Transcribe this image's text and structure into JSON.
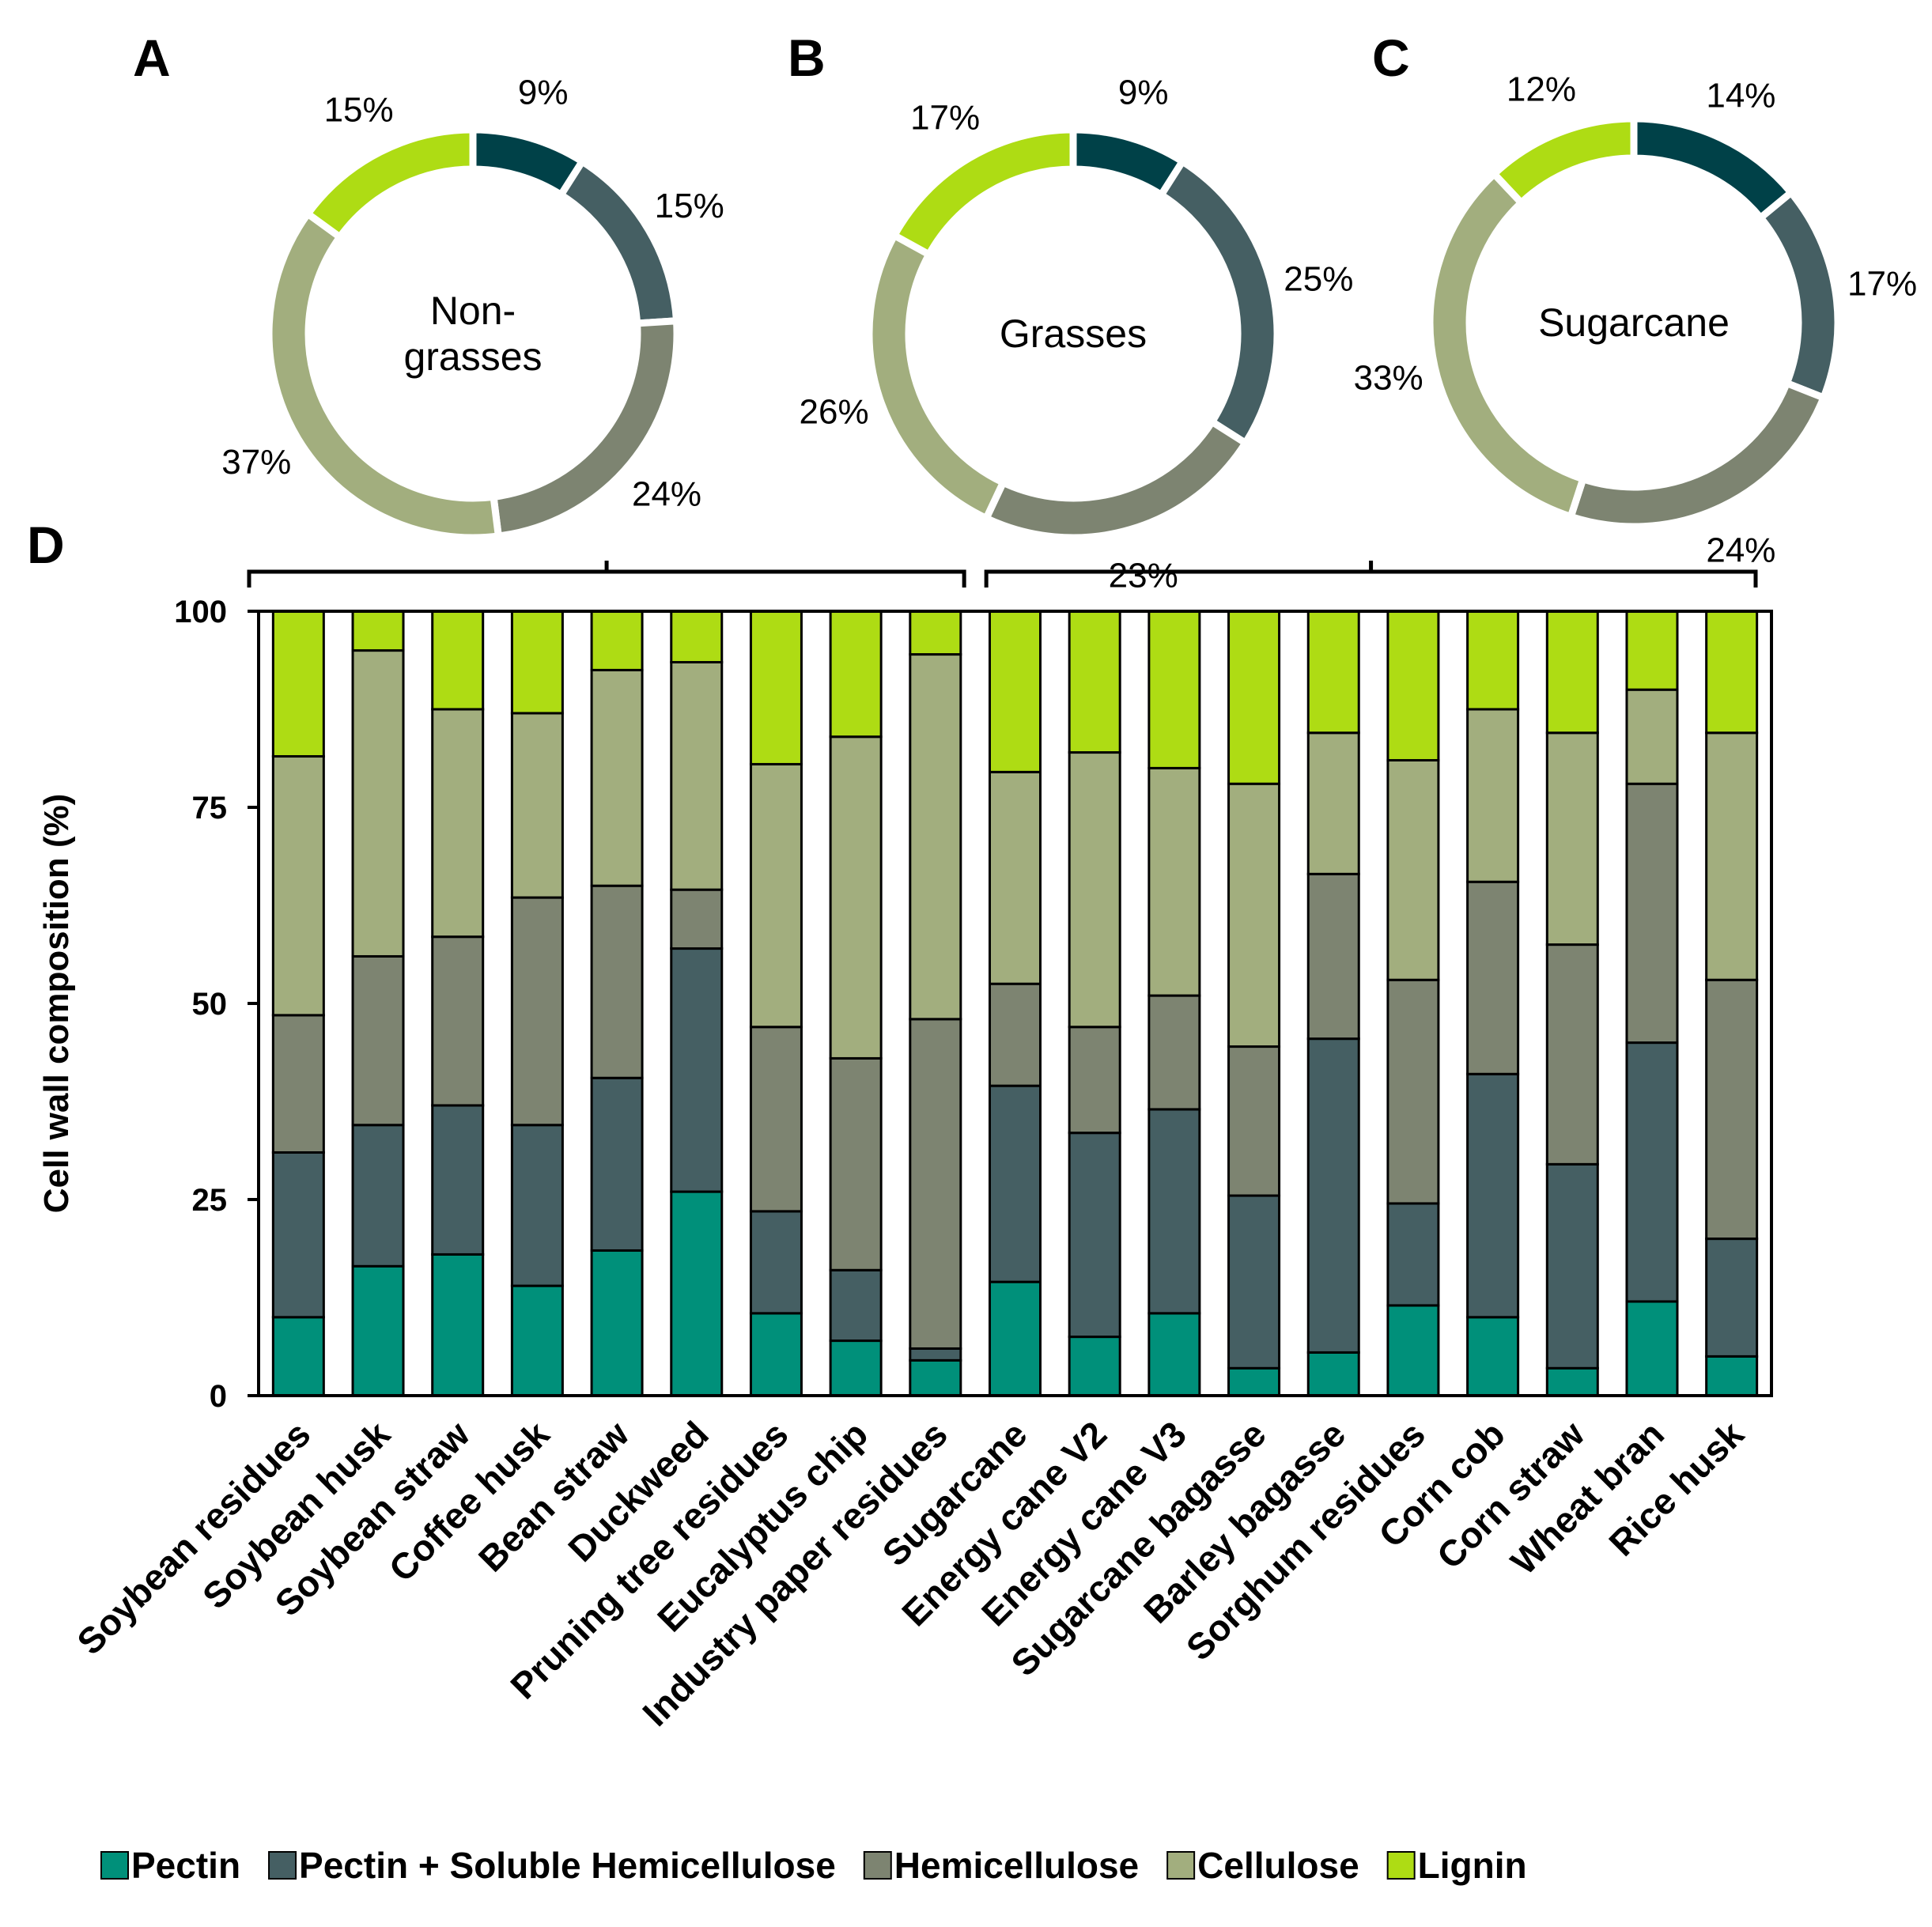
{
  "colors": {
    "Pectin": "#00907a",
    "Pectin + Soluble Hemicellulose": "#455f63",
    "Hemicellulose": "#7d8471",
    "Cellulose": "#a2ae7e",
    "Lignin": "#aedc14",
    "Pectin_donut": "#004148"
  },
  "chart_data": [
    {
      "type": "pie",
      "panel": "A",
      "center_label": [
        "Non-",
        "grasses"
      ],
      "categories": [
        "Pectin",
        "Pectin + Soluble Hemicellulose",
        "Hemicellulose",
        "Cellulose",
        "Lignin"
      ],
      "values": [
        9,
        15,
        24,
        37,
        15
      ],
      "labels": [
        "9%",
        "15%",
        "24%",
        "37%",
        "15%"
      ]
    },
    {
      "type": "pie",
      "panel": "B",
      "center_label": [
        "Grasses"
      ],
      "categories": [
        "Pectin",
        "Pectin + Soluble Hemicellulose",
        "Hemicellulose",
        "Cellulose",
        "Lignin"
      ],
      "values": [
        9,
        25,
        23,
        26,
        17
      ],
      "labels": [
        "9%",
        "25%",
        "23%",
        "26%",
        "17%"
      ]
    },
    {
      "type": "pie",
      "panel": "C",
      "center_label": [
        "Sugarcane"
      ],
      "categories": [
        "Pectin",
        "Pectin + Soluble Hemicellulose",
        "Hemicellulose",
        "Cellulose",
        "Lignin"
      ],
      "values": [
        14,
        17,
        24,
        33,
        12
      ],
      "labels": [
        "14%",
        "17%",
        "24%",
        "33%",
        "12%"
      ]
    },
    {
      "type": "bar",
      "stacked": true,
      "panel": "D",
      "ylabel": "Cell wall composition  (%)",
      "ylim": [
        0,
        100
      ],
      "yticks": [
        "0",
        "25",
        "50",
        "75",
        "100"
      ],
      "groups": [
        "Non-grasses",
        "Grasses"
      ],
      "categories": [
        "Soybean residues",
        "Soybean husk",
        "Soybean straw",
        "Coffee husk",
        "Bean straw",
        "Duckweed",
        "Pruning tree residues",
        "Eucalyptus chip",
        "Industry paper residues",
        "Sugarcane",
        "Energy cane V2",
        "Energy cane V3",
        "Sugarcane bagasse",
        "Barley bagasse",
        "Sorghum residues",
        "Corn cob",
        "Corn straw",
        "Wheat bran",
        "Rice husk"
      ],
      "series": [
        {
          "name": "Pectin",
          "values": [
            10,
            16.5,
            18,
            14,
            18.5,
            26,
            10.5,
            7,
            4.5,
            14.5,
            7.5,
            10.5,
            3.5,
            5.5,
            11.5,
            10,
            3.5,
            12,
            5
          ]
        },
        {
          "name": "Pectin + Soluble Hemicellulose",
          "values": [
            21,
            18,
            19,
            20.5,
            22,
            31,
            13,
            9,
            1.5,
            25,
            26,
            26,
            22,
            40,
            13,
            31,
            26,
            33,
            15
          ]
        },
        {
          "name": "Hemicellulose",
          "values": [
            17.5,
            21.5,
            21.5,
            29,
            24.5,
            7.5,
            23.5,
            27,
            42,
            13,
            13.5,
            14.5,
            19,
            21,
            28.5,
            24.5,
            28,
            33,
            33
          ]
        },
        {
          "name": "Cellulose",
          "values": [
            33,
            39,
            29,
            23.5,
            27.5,
            29,
            33.5,
            41,
            46.5,
            27,
            35,
            29,
            33.5,
            18,
            28,
            22,
            27,
            12,
            31.5
          ]
        },
        {
          "name": "Lignin",
          "values": [
            18.5,
            5,
            12.5,
            13,
            7.5,
            6.5,
            19.5,
            16,
            5.5,
            20.5,
            18,
            20,
            22,
            15.5,
            19,
            12.5,
            15.5,
            10,
            15.5
          ]
        }
      ],
      "legend": [
        "Pectin",
        "Pectin + Soluble Hemicellulose",
        "Hemicellulose",
        "Cellulose",
        "Lignin"
      ]
    }
  ]
}
